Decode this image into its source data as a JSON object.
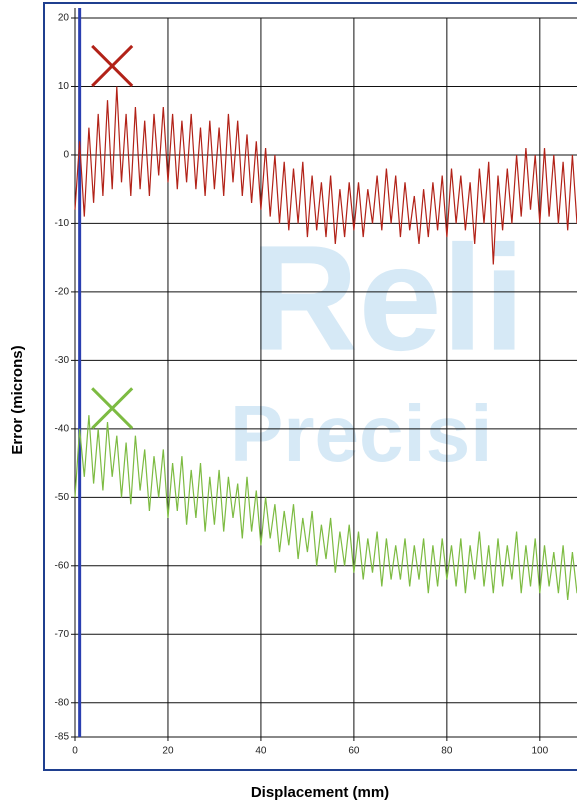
{
  "chart_data": {
    "type": "line",
    "x_label": "Displacement (mm)",
    "y_label": "Error (microns)",
    "watermark": [
      "Reli",
      "Precisi"
    ],
    "xlim": [
      0,
      108
    ],
    "ylim": [
      -85,
      20
    ],
    "xticks": [
      0,
      20,
      40,
      60,
      80,
      100
    ],
    "yticks": [
      20,
      10,
      0,
      -10,
      -20,
      -30,
      -40,
      -50,
      -60,
      -70,
      -80,
      -85
    ],
    "grid": true,
    "vline": {
      "x": 1,
      "color": "#2a3fb0"
    },
    "x": [
      0,
      1,
      2,
      3,
      4,
      5,
      6,
      7,
      8,
      9,
      10,
      11,
      12,
      13,
      14,
      15,
      16,
      17,
      18,
      19,
      20,
      21,
      22,
      23,
      24,
      25,
      26,
      27,
      28,
      29,
      30,
      31,
      32,
      33,
      34,
      35,
      36,
      37,
      38,
      39,
      40,
      41,
      42,
      43,
      44,
      45,
      46,
      47,
      48,
      49,
      50,
      51,
      52,
      53,
      54,
      55,
      56,
      57,
      58,
      59,
      60,
      61,
      62,
      63,
      64,
      65,
      66,
      67,
      68,
      69,
      70,
      71,
      72,
      73,
      74,
      75,
      76,
      77,
      78,
      79,
      80,
      81,
      82,
      83,
      84,
      85,
      86,
      87,
      88,
      89,
      90,
      91,
      92,
      93,
      94,
      95,
      96,
      97,
      98,
      99,
      100,
      101,
      102,
      103,
      104,
      105,
      106,
      107,
      108
    ],
    "series": [
      {
        "color": "#b22218",
        "marker": {
          "x": 8,
          "y": 13
        },
        "values": [
          -8,
          2,
          -9,
          4,
          -7,
          6,
          -6,
          8,
          -5,
          10,
          -4,
          6,
          -6,
          7,
          -5,
          5,
          -6,
          6,
          -3,
          7,
          -4,
          6,
          -5,
          5,
          -4,
          6,
          -5,
          4,
          -6,
          5,
          -5,
          4,
          -6,
          6,
          -4,
          5,
          -6,
          3,
          -7,
          2,
          -8,
          1,
          -9,
          0,
          -10,
          -1,
          -11,
          -2,
          -10,
          -1,
          -12,
          -3,
          -11,
          -4,
          -12,
          -3,
          -13,
          -5,
          -12,
          -4,
          -11,
          -4,
          -12,
          -5,
          -10,
          -3,
          -11,
          -2,
          -10,
          -3,
          -12,
          -4,
          -11,
          -6,
          -13,
          -5,
          -12,
          -4,
          -11,
          -3,
          -12,
          -2,
          -10,
          -3,
          -11,
          -4,
          -13,
          -2,
          -10,
          -1,
          -16,
          -3,
          -11,
          -2,
          -10,
          0,
          -9,
          1,
          -8,
          0,
          -10,
          1,
          -9,
          0,
          -10,
          -1,
          -11,
          0,
          -10
        ]
      },
      {
        "color": "#7dbb42",
        "marker": {
          "x": 8,
          "y": -37
        },
        "values": [
          -50,
          -40,
          -47,
          -38,
          -48,
          -40,
          -49,
          -39,
          -47,
          -41,
          -50,
          -42,
          -51,
          -41,
          -49,
          -43,
          -52,
          -44,
          -50,
          -43,
          -53,
          -45,
          -52,
          -44,
          -54,
          -46,
          -53,
          -45,
          -55,
          -47,
          -54,
          -46,
          -55,
          -47,
          -53,
          -48,
          -56,
          -47,
          -55,
          -49,
          -57,
          -50,
          -56,
          -51,
          -58,
          -52,
          -57,
          -51,
          -59,
          -53,
          -58,
          -52,
          -60,
          -54,
          -59,
          -53,
          -61,
          -55,
          -60,
          -54,
          -61,
          -55,
          -62,
          -56,
          -61,
          -55,
          -63,
          -56,
          -62,
          -57,
          -62,
          -56,
          -63,
          -57,
          -62,
          -56,
          -64,
          -57,
          -63,
          -56,
          -62,
          -57,
          -63,
          -56,
          -64,
          -57,
          -62,
          -55,
          -63,
          -57,
          -64,
          -56,
          -63,
          -57,
          -62,
          -55,
          -64,
          -57,
          -63,
          -56,
          -64,
          -57,
          -63,
          -58,
          -64,
          -57,
          -65,
          -58,
          -64
        ]
      }
    ]
  }
}
